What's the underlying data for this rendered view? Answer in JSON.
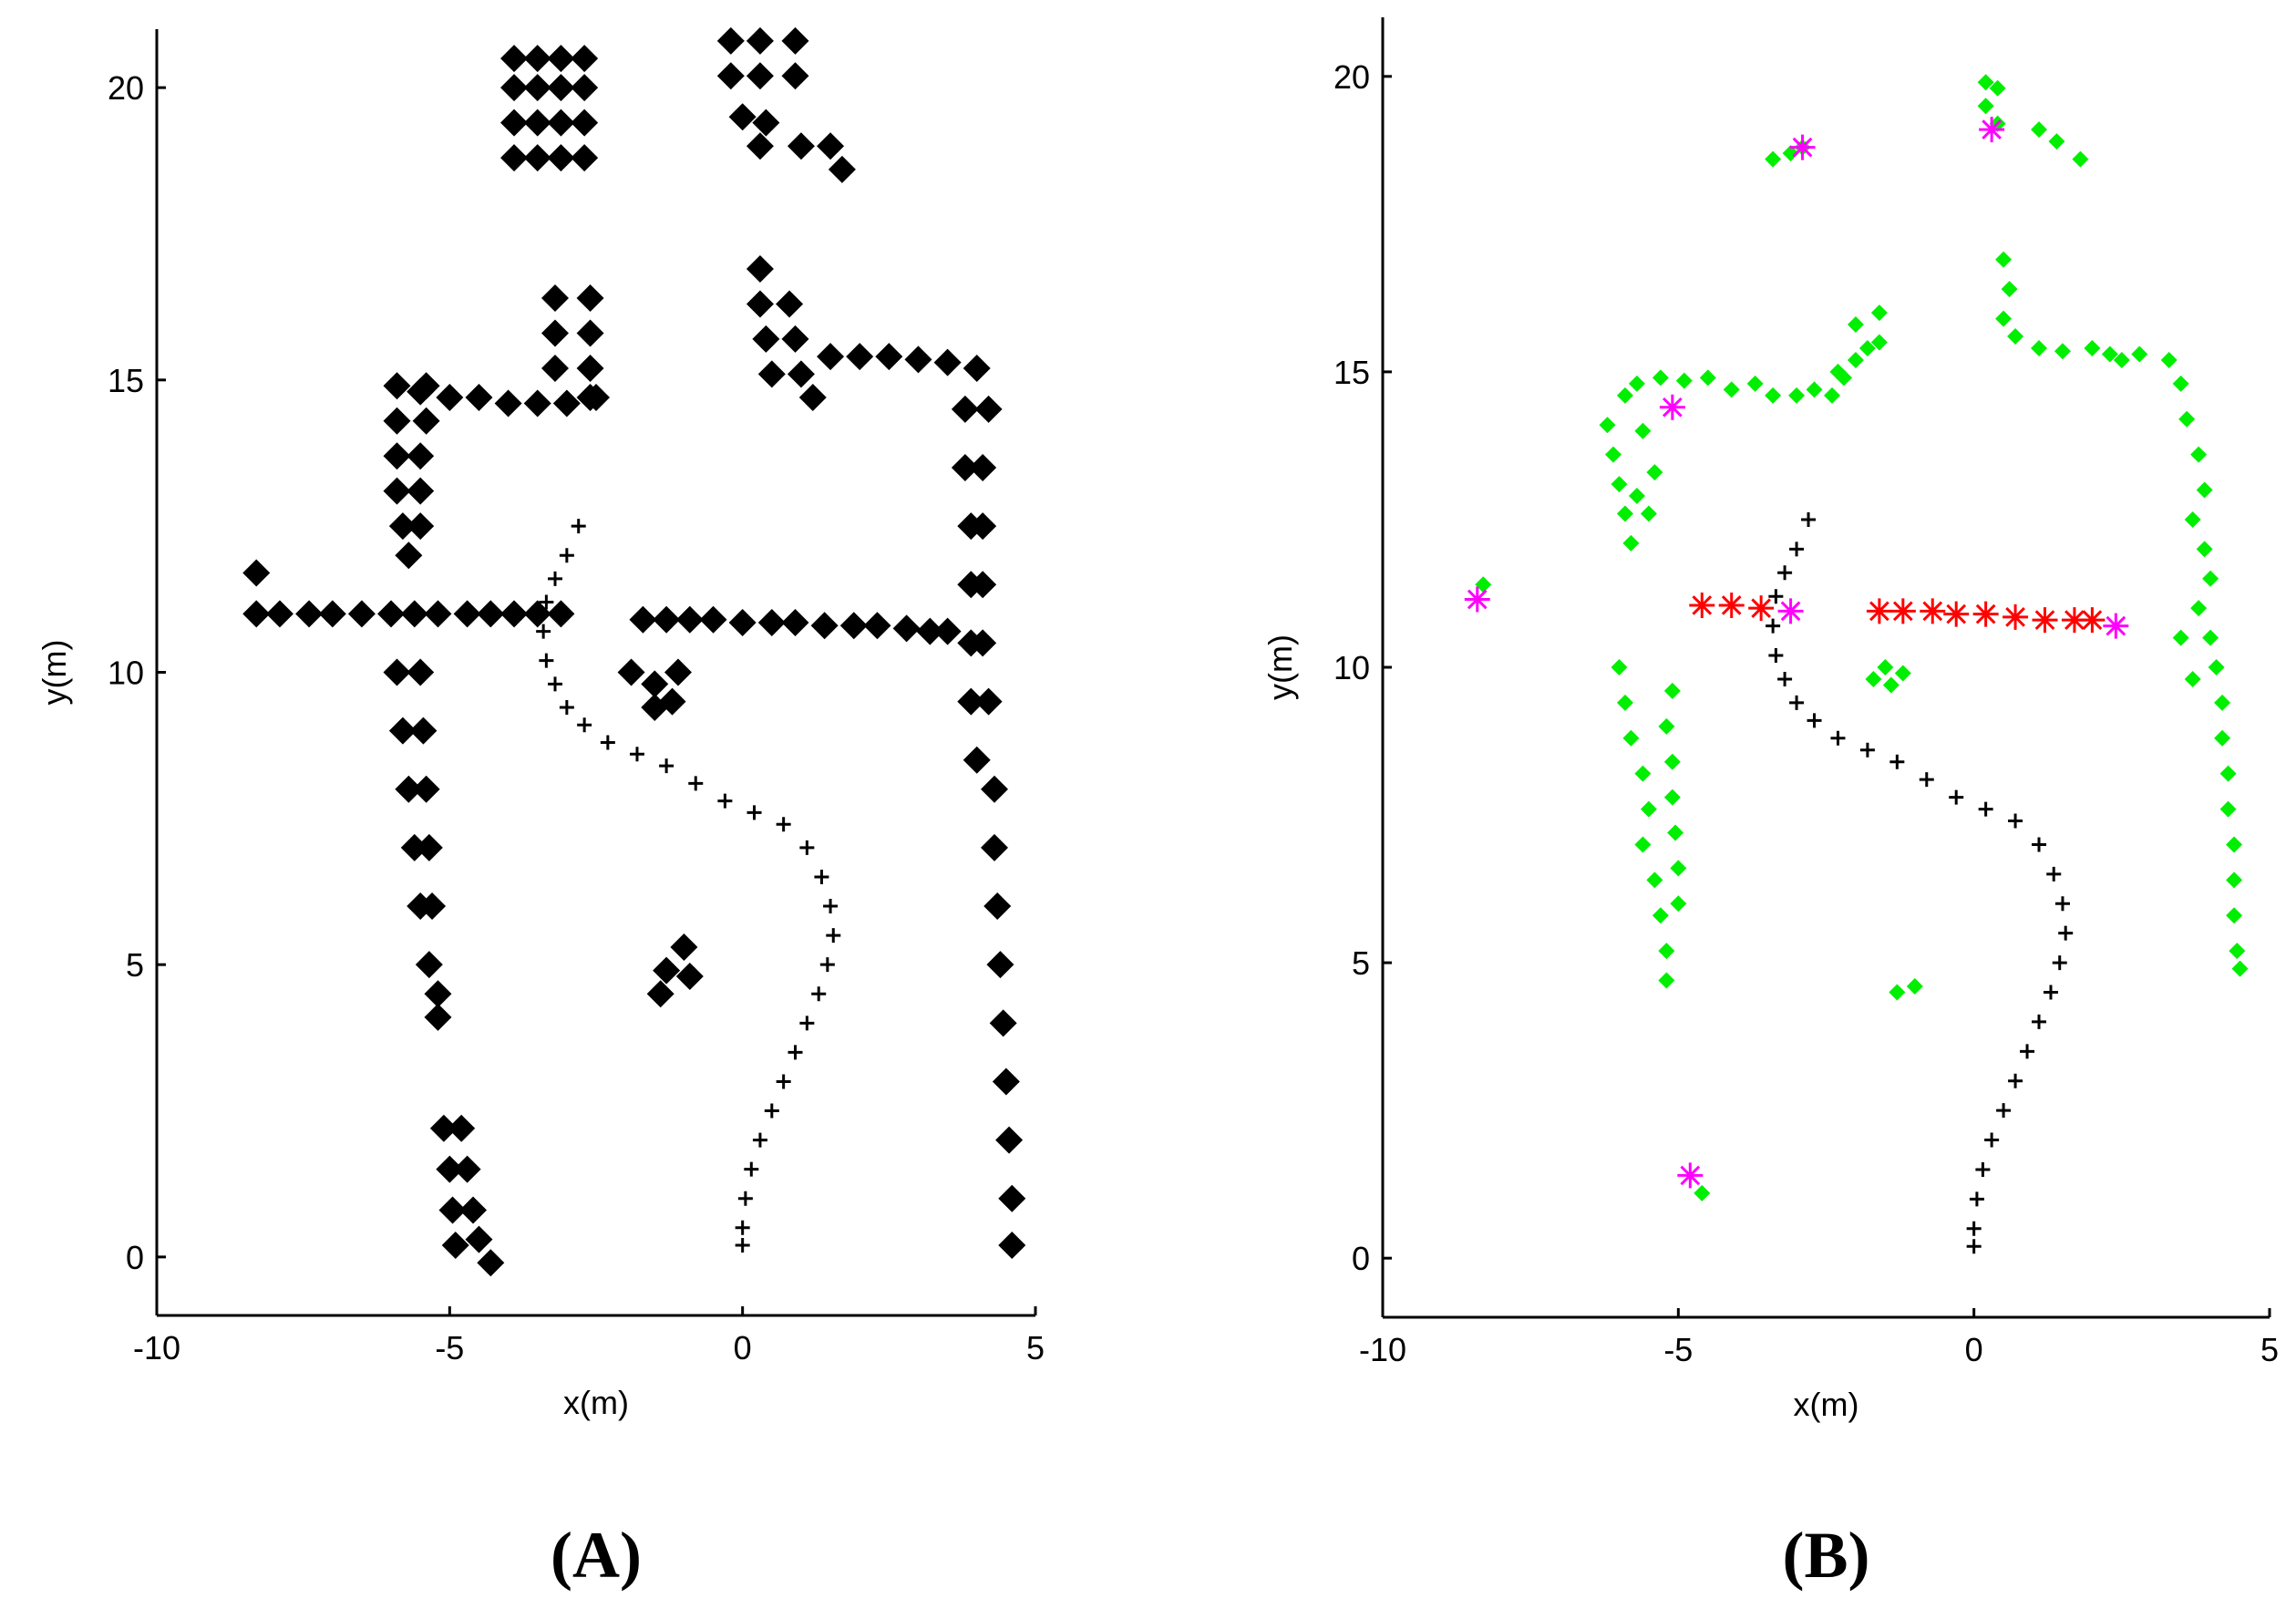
{
  "chart_data": [
    {
      "type": "scatter",
      "label": "(A)",
      "xlabel": "x(m)",
      "ylabel": "y(m)",
      "xlim": [
        -10,
        5
      ],
      "ylim": [
        -1,
        21
      ],
      "xticks": [
        -10,
        -5,
        0,
        5
      ],
      "yticks": [
        0,
        5,
        10,
        15,
        20
      ],
      "series": [
        {
          "color": "#000000",
          "marker": "diamond",
          "x": [
            -3.9,
            -3.5,
            -3.1,
            -2.7,
            -3.9,
            -3.5,
            -3.1,
            -2.7,
            -3.9,
            -3.5,
            -3.1,
            -2.7,
            -3.9,
            -3.5,
            -3.1,
            -2.7,
            -0.2,
            0.3,
            0.9,
            -0.2,
            0.3,
            0.9,
            0,
            0.4,
            1.0,
            1.5,
            1.7,
            0.3,
            -3.2,
            -2.6,
            -3.2,
            -2.6,
            -3.2,
            -2.6,
            -2.5,
            -5.5,
            -5,
            -4.5,
            -4,
            -3.5,
            -3,
            -2.6,
            -5.9,
            -5.4,
            -5.9,
            -5.4,
            -5.9,
            -5.5,
            -5.9,
            -5.5,
            -5.8,
            -5.5,
            -5.7,
            0.3,
            0.3,
            0.8,
            0.4,
            0.9,
            0.5,
            1.0,
            1.2,
            1.5,
            2,
            2.5,
            3,
            3.5,
            4,
            3.8,
            4.2,
            3.8,
            4.1,
            3.9,
            4.1,
            3.9,
            4.1,
            3.9,
            4.1,
            3.9,
            4.2,
            4.0,
            4.3,
            4.3,
            4.35,
            4.4,
            4.45,
            4.5,
            4.55,
            4.6,
            4.6,
            -5.9,
            -5.5,
            -5.8,
            -5.45,
            -5.7,
            -5.4,
            -5.6,
            -5.35,
            -5.5,
            -5.3,
            -5.35,
            -5.2,
            -5.2,
            -5.1,
            -4.8,
            -5,
            -4.7,
            -4.95,
            -4.6,
            -4.9,
            -4.5,
            -4.3,
            -1.9,
            -1.5,
            -1.1,
            -1.5,
            -1.2,
            -1.0,
            -1.3,
            -1.4,
            -0.9,
            -8.3,
            -8.3,
            -7.9,
            -7.4,
            -7.0,
            -6.5,
            -6.0,
            -5.6,
            -5.2,
            -4.7,
            -4.3,
            -3.9,
            -3.5,
            -3.1,
            -1.7,
            -1.3,
            -0.9,
            -0.5,
            0,
            0.5,
            0.9,
            1.4,
            1.9,
            2.3,
            2.8,
            3.2,
            3.5
          ],
          "y": [
            18.8,
            18.8,
            18.8,
            18.8,
            19.4,
            19.4,
            19.4,
            19.4,
            20.0,
            20.0,
            20.0,
            20.0,
            20.5,
            20.5,
            20.5,
            20.5,
            20.8,
            20.8,
            20.8,
            20.2,
            20.2,
            20.2,
            19.5,
            19.4,
            19.0,
            19.0,
            18.6,
            19.0,
            16.4,
            16.4,
            15.8,
            15.8,
            15.2,
            15.2,
            14.7,
            14.8,
            14.7,
            14.7,
            14.6,
            14.6,
            14.6,
            14.7,
            14.9,
            14.9,
            14.3,
            14.3,
            13.7,
            13.7,
            13.1,
            13.1,
            12.5,
            12.5,
            12.0,
            16.9,
            16.3,
            16.3,
            15.7,
            15.7,
            15.1,
            15.1,
            14.7,
            15.4,
            15.4,
            15.4,
            15.35,
            15.3,
            15.2,
            14.5,
            14.5,
            13.5,
            13.5,
            12.5,
            12.5,
            11.5,
            11.5,
            10.5,
            10.5,
            9.5,
            9.5,
            8.5,
            8,
            7,
            6,
            5,
            4,
            3,
            2,
            1,
            0.2,
            10,
            10,
            9,
            9,
            8,
            8,
            7,
            7,
            6,
            6,
            5,
            4.5,
            4.1,
            2.2,
            2.2,
            1.5,
            1.5,
            0.8,
            0.8,
            0.2,
            0.3,
            -0.1,
            10.0,
            9.8,
            10.0,
            9.4,
            9.5,
            5.3,
            4.9,
            4.5,
            4.8,
            11.7,
            11.0,
            11.0,
            11.0,
            11.0,
            11.0,
            11.0,
            11.0,
            11.0,
            11.0,
            11.0,
            11.0,
            11.0,
            11.0,
            10.9,
            10.9,
            10.9,
            10.9,
            10.85,
            10.85,
            10.85,
            10.8,
            10.8,
            10.8,
            10.75,
            10.7,
            10.7
          ]
        },
        {
          "color": "#000000",
          "marker": "plus",
          "x": [
            0,
            0,
            0.05,
            0.15,
            0.3,
            0.5,
            0.7,
            0.9,
            1.1,
            1.3,
            1.45,
            1.55,
            1.5,
            1.35,
            1.1,
            0.7,
            0.2,
            -0.3,
            -0.8,
            -1.3,
            -1.8,
            -2.3,
            -2.7,
            -3.0,
            -3.2,
            -3.35,
            -3.4,
            -3.35,
            -3.2,
            -3.0,
            -2.8
          ],
          "y": [
            0.2,
            0.5,
            1,
            1.5,
            2,
            2.5,
            3,
            3.5,
            4,
            4.5,
            5,
            5.5,
            6,
            6.5,
            7,
            7.4,
            7.6,
            7.8,
            8.1,
            8.4,
            8.6,
            8.8,
            9.1,
            9.4,
            9.8,
            10.2,
            10.7,
            11.2,
            11.6,
            12.0,
            12.5
          ]
        }
      ]
    },
    {
      "type": "scatter",
      "label": "(B)",
      "xlabel": "x(m)",
      "ylabel": "y(m)",
      "xlim": [
        -10,
        5
      ],
      "ylim": [
        -1,
        21
      ],
      "xticks": [
        -10,
        -5,
        0,
        5
      ],
      "yticks": [
        0,
        5,
        10,
        15,
        20
      ],
      "series": [
        {
          "color": "#00ee00",
          "marker": "diamond",
          "x": [
            -6.2,
            -6.1,
            -6.0,
            -5.9,
            -5.8,
            -5.7,
            -5.5,
            -5.4,
            -5.6,
            -5.9,
            -5.7,
            -5.3,
            -4.9,
            -4.5,
            -4.1,
            -3.7,
            -3.4,
            -3.0,
            -2.7,
            -2.4,
            -2.2,
            -2.0,
            -1.8,
            -2.3,
            -1.6,
            -2.0,
            -1.6,
            -3.4,
            -3.1,
            -2.9,
            0.2,
            0.4,
            0.2,
            0.4,
            1.1,
            1.4,
            1.8,
            0.5,
            0.6,
            0.5,
            0.7,
            1.1,
            1.5,
            2.0,
            2.5,
            2.3,
            2.8,
            3.3,
            3.5,
            3.6,
            3.8,
            3.9,
            3.7,
            3.9,
            4.0,
            3.8,
            4.0,
            4.1,
            4.2,
            4.2,
            4.3,
            4.3,
            4.4,
            4.4,
            4.4,
            4.45,
            4.5,
            3.5,
            3.7,
            -6.0,
            -5.9,
            -5.8,
            -5.6,
            -5.5,
            -5.6,
            -5.4,
            -5.3,
            -5.2,
            -5.2,
            -5.1,
            -5.2,
            -5.1,
            -5.1,
            -5.05,
            -5.0,
            -5.0,
            -1.7,
            -1.4,
            -1.2,
            -1.5,
            -1.3,
            -1.0,
            -4.6,
            -8.3
          ],
          "y": [
            14.1,
            13.6,
            13.1,
            12.6,
            12.1,
            12.9,
            12.6,
            13.3,
            14.0,
            14.6,
            14.8,
            14.9,
            14.85,
            14.9,
            14.7,
            14.8,
            14.6,
            14.6,
            14.7,
            14.6,
            14.9,
            15.2,
            15.4,
            15.0,
            15.5,
            15.8,
            16.0,
            18.6,
            18.7,
            18.8,
            19.9,
            19.8,
            19.5,
            19.2,
            19.1,
            18.9,
            18.6,
            16.9,
            16.4,
            15.9,
            15.6,
            15.4,
            15.35,
            15.4,
            15.2,
            15.3,
            15.3,
            15.2,
            14.8,
            14.2,
            13.6,
            13.0,
            12.5,
            12.0,
            11.5,
            11.0,
            10.5,
            10.0,
            9.4,
            8.8,
            8.2,
            7.6,
            7.0,
            6.4,
            5.8,
            5.2,
            4.9,
            10.5,
            9.8,
            10.0,
            9.4,
            8.8,
            8.2,
            7.6,
            7.0,
            6.4,
            5.8,
            5.2,
            4.7,
            9.6,
            9.0,
            8.4,
            7.8,
            7.2,
            6.6,
            6.0,
            9.8,
            9.7,
            9.9,
            10.0,
            4.5,
            4.6,
            1.1,
            11.4
          ]
        },
        {
          "color": "#000000",
          "marker": "plus",
          "x": [
            0,
            0,
            0.05,
            0.15,
            0.3,
            0.5,
            0.7,
            0.9,
            1.1,
            1.3,
            1.45,
            1.55,
            1.5,
            1.35,
            1.1,
            0.7,
            0.2,
            -0.3,
            -0.8,
            -1.3,
            -1.8,
            -2.3,
            -2.7,
            -3.0,
            -3.2,
            -3.35,
            -3.4,
            -3.35,
            -3.2,
            -3.0,
            -2.8
          ],
          "y": [
            0.2,
            0.5,
            1,
            1.5,
            2,
            2.5,
            3,
            3.5,
            4,
            4.5,
            5,
            5.5,
            6,
            6.5,
            7,
            7.4,
            7.6,
            7.8,
            8.1,
            8.4,
            8.6,
            8.8,
            9.1,
            9.4,
            9.8,
            10.2,
            10.7,
            11.2,
            11.6,
            12.0,
            12.5
          ]
        },
        {
          "color": "#ff0000",
          "marker": "star",
          "x": [
            -4.6,
            -4.1,
            -3.6,
            -1.6,
            -1.2,
            -0.7,
            -0.3,
            0.2,
            0.7,
            1.2,
            1.7,
            2.0
          ],
          "y": [
            11.05,
            11.05,
            11.0,
            10.95,
            10.95,
            10.95,
            10.9,
            10.9,
            10.85,
            10.8,
            10.8,
            10.8
          ]
        },
        {
          "color": "#ff00ff",
          "marker": "star",
          "x": [
            -8.4,
            -5.1,
            -3.1,
            -2.9,
            0.3,
            2.4,
            -4.8
          ],
          "y": [
            11.15,
            14.4,
            10.95,
            18.8,
            19.1,
            10.7,
            1.4
          ]
        }
      ]
    }
  ]
}
